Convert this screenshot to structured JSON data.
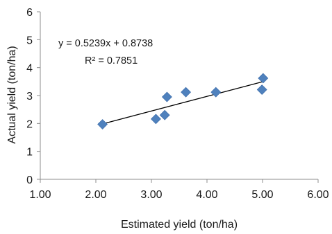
{
  "chart_data": {
    "type": "scatter",
    "xlabel": "Estimated yield (ton/ha)",
    "ylabel": "Actual yield (ton/ha)",
    "xlim": [
      1.0,
      6.0
    ],
    "ylim": [
      0,
      6
    ],
    "x_ticks": [
      "1.00",
      "2.00",
      "3.00",
      "4.00",
      "5.00",
      "6.00"
    ],
    "y_ticks": [
      "0",
      "1",
      "2",
      "3",
      "4",
      "5",
      "6"
    ],
    "grid": false,
    "legend": "none",
    "marker": "diamond",
    "marker_color": "#4f81bd",
    "line_color": "#000000",
    "points": [
      {
        "x": 2.12,
        "y": 1.97
      },
      {
        "x": 3.08,
        "y": 2.16
      },
      {
        "x": 3.24,
        "y": 2.3
      },
      {
        "x": 3.28,
        "y": 2.95
      },
      {
        "x": 3.62,
        "y": 3.12
      },
      {
        "x": 4.16,
        "y": 3.12
      },
      {
        "x": 4.99,
        "y": 3.21
      },
      {
        "x": 5.01,
        "y": 3.62
      }
    ],
    "trendline": {
      "slope": 0.5239,
      "intercept": 0.8738,
      "x_range": [
        2.12,
        5.01
      ],
      "equation_label": "y = 0.5239x + 0.8738",
      "r2_label": "R² = 0.7851"
    }
  }
}
